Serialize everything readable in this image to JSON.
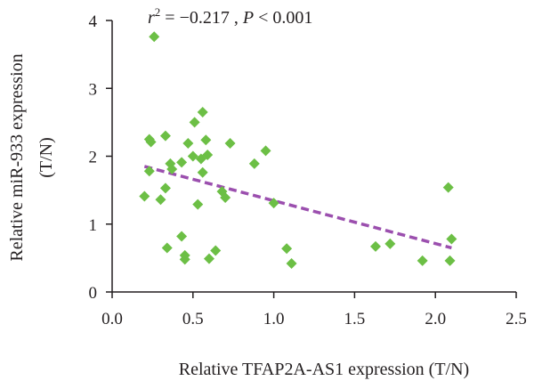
{
  "chart_data": {
    "type": "scatter",
    "xlabel": "Relative TFAP2A-AS1 expression (T/N)",
    "ylabel_line1": "Relative miR-933 expression",
    "ylabel_line2": "(T/N)",
    "annotation": {
      "r_symbol": "r",
      "r_exponent": "2",
      "r_value": " = −0.217 , ",
      "p_symbol": "P",
      "p_value": " < 0.001"
    },
    "xlim": [
      0.0,
      2.5
    ],
    "ylim": [
      0,
      4
    ],
    "xticks": [
      0.0,
      0.5,
      1.0,
      1.5,
      2.0,
      2.5
    ],
    "xtick_labels": [
      "0.0",
      "0.5",
      "1.0",
      "1.5",
      "2.0",
      "2.5"
    ],
    "yticks": [
      0,
      1,
      2,
      3,
      4
    ],
    "ytick_labels": [
      "0",
      "1",
      "2",
      "3",
      "4"
    ],
    "grid": false,
    "marker_color": "#6cbf45",
    "marker": "diamond",
    "trendline": {
      "style": "dashed",
      "color": "#9b4fae",
      "x": [
        0.2,
        2.1
      ],
      "y": [
        1.85,
        0.65
      ]
    },
    "points": [
      {
        "x": 0.26,
        "y": 3.76
      },
      {
        "x": 0.23,
        "y": 2.25
      },
      {
        "x": 0.24,
        "y": 2.21
      },
      {
        "x": 0.33,
        "y": 2.3
      },
      {
        "x": 0.23,
        "y": 1.78
      },
      {
        "x": 0.2,
        "y": 1.41
      },
      {
        "x": 0.3,
        "y": 1.36
      },
      {
        "x": 0.33,
        "y": 1.53
      },
      {
        "x": 0.36,
        "y": 1.89
      },
      {
        "x": 0.37,
        "y": 1.81
      },
      {
        "x": 0.43,
        "y": 1.91
      },
      {
        "x": 0.47,
        "y": 2.19
      },
      {
        "x": 0.5,
        "y": 2.0
      },
      {
        "x": 0.51,
        "y": 2.5
      },
      {
        "x": 0.56,
        "y": 2.65
      },
      {
        "x": 0.58,
        "y": 2.24
      },
      {
        "x": 0.55,
        "y": 1.96
      },
      {
        "x": 0.59,
        "y": 2.02
      },
      {
        "x": 0.56,
        "y": 1.76
      },
      {
        "x": 0.53,
        "y": 1.29
      },
      {
        "x": 0.68,
        "y": 1.48
      },
      {
        "x": 0.7,
        "y": 1.39
      },
      {
        "x": 0.73,
        "y": 2.19
      },
      {
        "x": 0.88,
        "y": 1.89
      },
      {
        "x": 0.95,
        "y": 2.08
      },
      {
        "x": 1.0,
        "y": 1.31
      },
      {
        "x": 0.34,
        "y": 0.65
      },
      {
        "x": 0.43,
        "y": 0.82
      },
      {
        "x": 0.45,
        "y": 0.54
      },
      {
        "x": 0.45,
        "y": 0.48
      },
      {
        "x": 0.6,
        "y": 0.49
      },
      {
        "x": 0.64,
        "y": 0.61
      },
      {
        "x": 1.08,
        "y": 0.64
      },
      {
        "x": 1.11,
        "y": 0.42
      },
      {
        "x": 1.63,
        "y": 0.67
      },
      {
        "x": 1.72,
        "y": 0.71
      },
      {
        "x": 1.92,
        "y": 0.46
      },
      {
        "x": 2.08,
        "y": 1.54
      },
      {
        "x": 2.1,
        "y": 0.78
      },
      {
        "x": 2.09,
        "y": 0.46
      }
    ]
  }
}
